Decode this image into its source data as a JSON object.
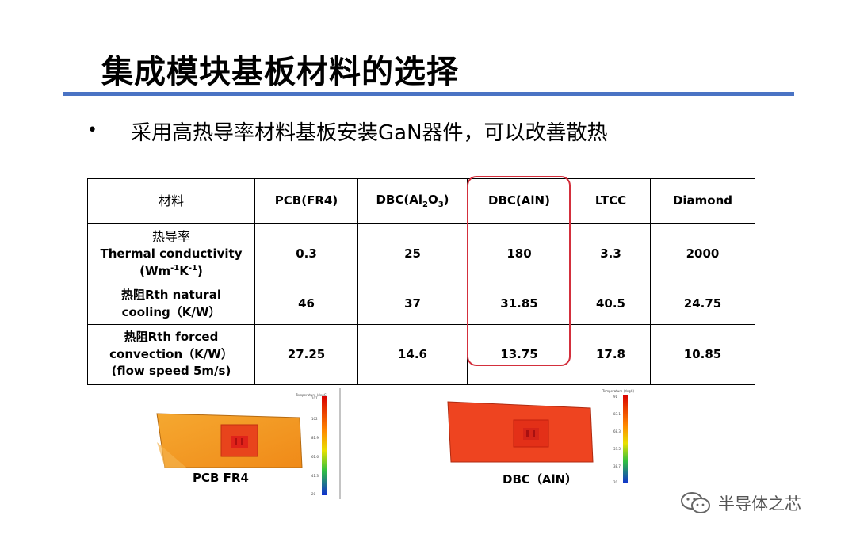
{
  "slide": {
    "title": "集成模块基板材料的选择",
    "bullet": "采用高热导率材料基板安装GaN器件，可以改善散热"
  },
  "table": {
    "headers": {
      "material": "材料",
      "pcb": "PCB(FR4)",
      "dbc_al2o3_pre": "DBC(Al",
      "dbc_al2o3_sub1": "2",
      "dbc_al2o3_mid": "O",
      "dbc_al2o3_sub2": "3",
      "dbc_al2o3_post": ")",
      "dbc_aln": "DBC(AlN)",
      "ltcc": "LTCC",
      "diamond": "Diamond"
    },
    "row_conductivity": {
      "label_cn": "热导率",
      "label_en": "Thermal conductivity",
      "unit_pre": "(Wm",
      "unit_sup1": "-1",
      "unit_mid": "K",
      "unit_sup2": "-1",
      "unit_post": ")",
      "values": [
        "0.3",
        "25",
        "180",
        "3.3",
        "2000"
      ]
    },
    "row_natural": {
      "label_a": "热阻Rth natural",
      "label_b": "cooling（K/W）",
      "values": [
        "46",
        "37",
        "31.85",
        "40.5",
        "24.75"
      ]
    },
    "row_forced": {
      "label_a": "热阻Rth forced",
      "label_b": "convection（K/W）",
      "label_c": "(flow speed 5m/s)",
      "values": [
        "27.25",
        "14.6",
        "13.75",
        "17.8",
        "10.85"
      ]
    }
  },
  "simulations": {
    "pcb_caption": "PCB FR4",
    "dbc_caption": "DBC（AlN）",
    "pcb_colors": {
      "board": "#f39a1e",
      "chip": "#e8441c",
      "chip_core": "#e0221a"
    },
    "dbc_colors": {
      "board": "#ee4420",
      "chip": "#e33018",
      "chip_core": "#d52418"
    }
  },
  "watermark": {
    "text": "半导体之芯",
    "icon": "wechat-icon"
  },
  "colors": {
    "title_rule": "#4a73c4",
    "highlight": "#d32f3c"
  }
}
